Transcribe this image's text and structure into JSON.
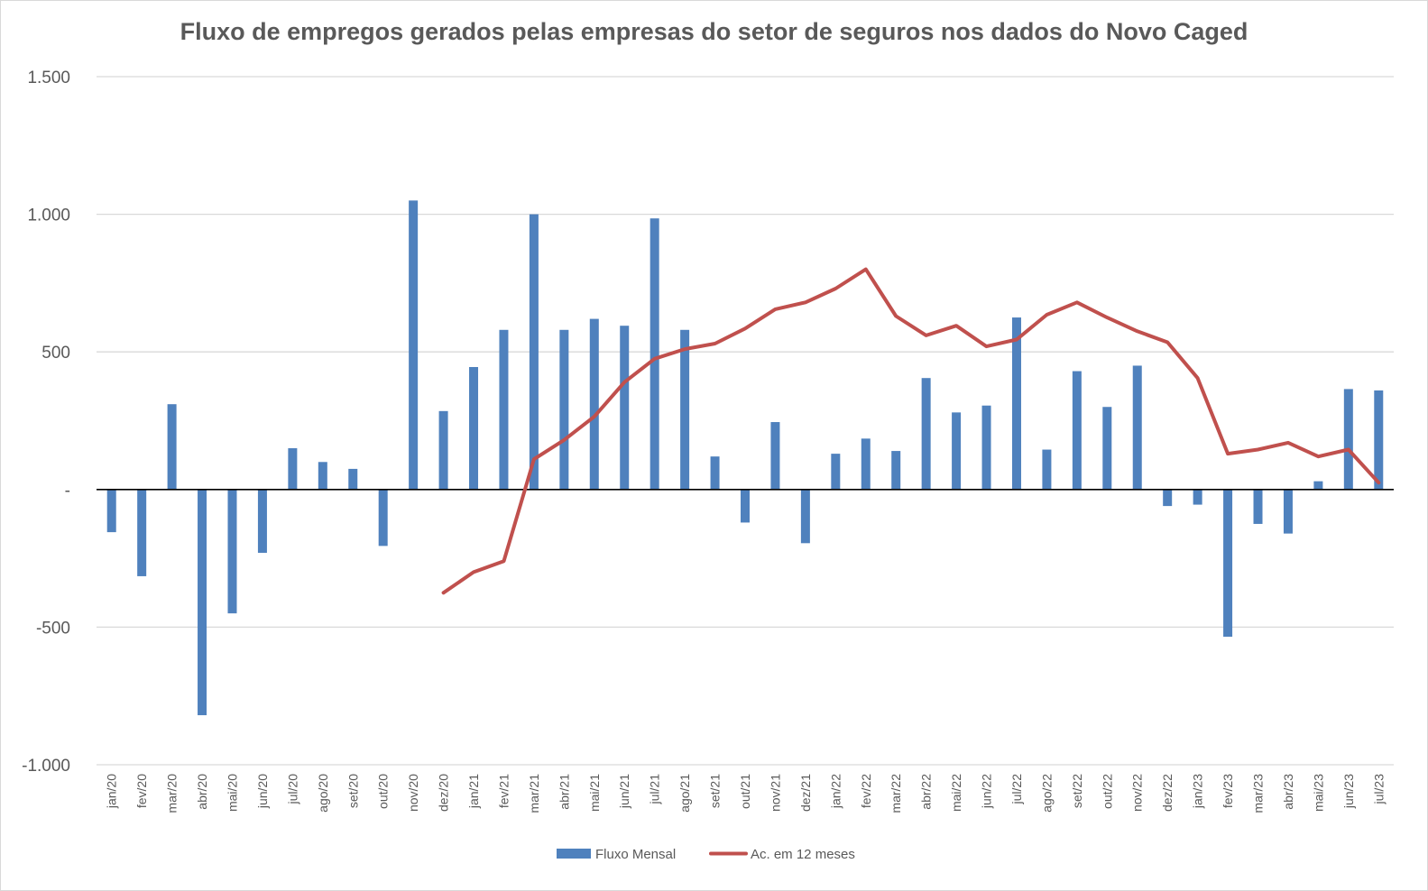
{
  "chart_data": {
    "type": "bar",
    "title": "Fluxo de empregos gerados pelas empresas do setor de seguros nos dados do Novo Caged",
    "xlabel": "",
    "ylabel": "",
    "ylim": [
      -1000,
      1500
    ],
    "yticks": [
      1500,
      1000,
      500,
      0,
      -500,
      -1000
    ],
    "ytick_labels": [
      "1.500",
      "1.000",
      "500",
      "-",
      "-500",
      "-1.000"
    ],
    "grid": true,
    "legend_position": "bottom",
    "categories": [
      "jan/20",
      "fev/20",
      "mar/20",
      "abr/20",
      "mai/20",
      "jun/20",
      "jul/20",
      "ago/20",
      "set/20",
      "out/20",
      "nov/20",
      "dez/20",
      "jan/21",
      "fev/21",
      "mar/21",
      "abr/21",
      "mai/21",
      "jun/21",
      "jul/21",
      "ago/21",
      "set/21",
      "out/21",
      "nov/21",
      "dez/21",
      "jan/22",
      "fev/22",
      "mar/22",
      "abr/22",
      "mai/22",
      "jun/22",
      "jul/22",
      "ago/22",
      "set/22",
      "out/22",
      "nov/22",
      "dez/22",
      "jan/23",
      "fev/23",
      "mar/23",
      "abr/23",
      "mai/23",
      "jun/23",
      "jul/23"
    ],
    "series": [
      {
        "name": "Fluxo Mensal",
        "type": "bar",
        "color": "#4f81bd",
        "values": [
          -155,
          -315,
          310,
          -820,
          -450,
          -230,
          150,
          100,
          75,
          -205,
          1050,
          285,
          445,
          580,
          1000,
          580,
          620,
          595,
          985,
          580,
          120,
          -120,
          245,
          -195,
          130,
          185,
          140,
          405,
          280,
          305,
          625,
          145,
          430,
          300,
          450,
          -60,
          -55,
          -535,
          -125,
          -160,
          30,
          365,
          360
        ]
      },
      {
        "name": "Ac. em 12 meses",
        "type": "line",
        "color": "#c0504d",
        "values": [
          null,
          null,
          null,
          null,
          null,
          null,
          null,
          null,
          null,
          null,
          null,
          -375,
          -300,
          -260,
          110,
          180,
          265,
          390,
          475,
          510,
          530,
          585,
          655,
          680,
          730,
          800,
          630,
          560,
          595,
          520,
          545,
          635,
          680,
          625,
          575,
          535,
          405,
          130,
          145,
          170,
          120,
          145,
          25
        ]
      }
    ]
  }
}
